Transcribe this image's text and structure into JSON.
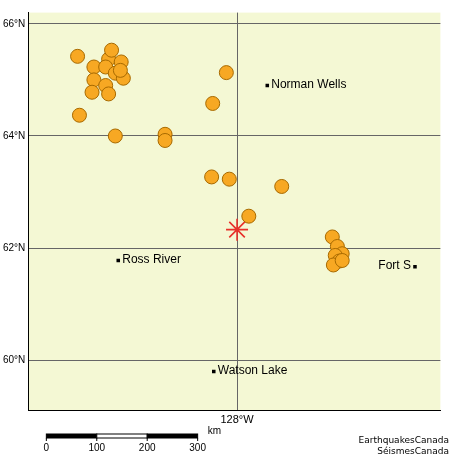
{
  "chart_data": {
    "type": "scatter",
    "xlim": [
      -135.8,
      -120.4
    ],
    "ylim": [
      59.1,
      66.2
    ],
    "xticks": [
      {
        "value": -128,
        "label": "128°W"
      }
    ],
    "yticks": [
      {
        "value": 60,
        "label": "60°N"
      },
      {
        "value": 62,
        "label": "62°N"
      },
      {
        "value": 64,
        "label": "64°N"
      },
      {
        "value": 66,
        "label": "66°N"
      }
    ],
    "grid": true,
    "series": [
      {
        "color": "#f7a823",
        "marker": "circle",
        "x": [
          -133.96,
          -133.35,
          -132.8,
          -132.91,
          -132.33,
          -132.55,
          -133.35,
          -132.25,
          -132.91,
          -133.42,
          -132.8,
          -133.89,
          -132.69,
          -132.36,
          -132.55,
          -128.4,
          -128.91,
          -130.69,
          -130.69,
          -128.95,
          -128.29,
          -126.33,
          -127.56,
          -124.44,
          -124.25,
          -124.07,
          -124.33,
          -124.18,
          -124.4,
          -124.07
        ],
        "y": [
          65.42,
          65.23,
          65.37,
          65.23,
          65.32,
          65.12,
          65.0,
          65.03,
          64.9,
          64.78,
          64.75,
          64.37,
          65.53,
          65.17,
          64.0,
          65.13,
          64.58,
          64.03,
          63.92,
          63.27,
          63.23,
          63.1,
          62.57,
          62.2,
          62.03,
          61.9,
          61.87,
          61.77,
          61.7,
          61.78
        ]
      },
      {
        "color": "#e8322b",
        "marker": "star",
        "x": [
          -128.0
        ],
        "y": [
          62.33
        ]
      }
    ],
    "places": [
      {
        "label": "Norman Wells",
        "x": -126.87,
        "y": 64.9
      },
      {
        "label": "Ross River",
        "x": -132.44,
        "y": 61.78
      },
      {
        "label": "Fort S",
        "x": -121.35,
        "y": 61.67
      },
      {
        "label": "Watson Lake",
        "x": -128.87,
        "y": 59.8
      }
    ],
    "scale_bar": {
      "ticks": [
        0,
        100,
        200,
        300
      ],
      "unit": "km"
    },
    "credits": [
      "EarthquakesCanada",
      "SéismesCanada"
    ]
  }
}
